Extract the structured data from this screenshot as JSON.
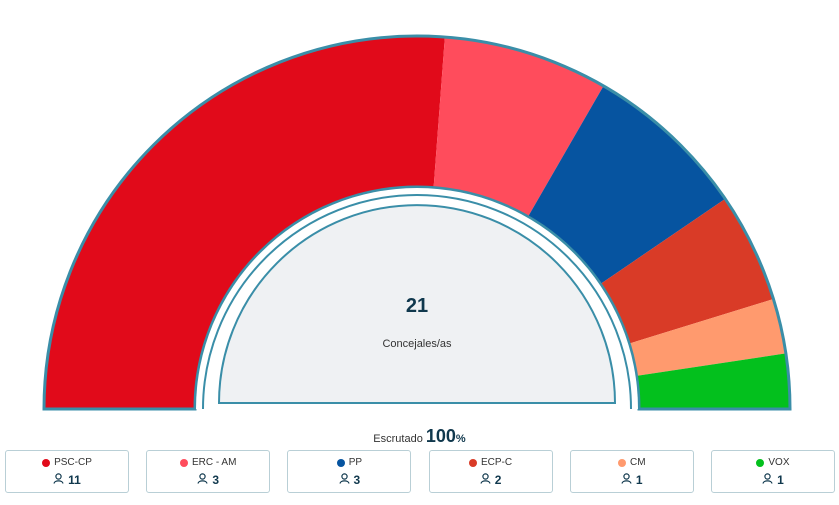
{
  "chart_data": {
    "type": "pie",
    "total": "21",
    "total_label": "Concejales/as",
    "categories": [
      "PSC-CP",
      "ERC - AM",
      "PP",
      "ECP-C",
      "CM",
      "VOX"
    ],
    "values": [
      11,
      3,
      3,
      2,
      1,
      1
    ],
    "colors": [
      "#e10a1a",
      "#ff4c5c",
      "#0654a0",
      "#d93b27",
      "#ff9a6e",
      "#03c01d"
    ]
  },
  "scrutiny": {
    "label": "Escrutado",
    "value": "100",
    "unit": "%"
  },
  "legend": [
    {
      "name": "PSC-CP",
      "seats": "11",
      "color": "#e10a1a"
    },
    {
      "name": "ERC - AM",
      "seats": "3",
      "color": "#ff4c5c"
    },
    {
      "name": "PP",
      "seats": "3",
      "color": "#0654a0"
    },
    {
      "name": "ECP-C",
      "seats": "2",
      "color": "#d93b27"
    },
    {
      "name": "CM",
      "seats": "1",
      "color": "#ff9a6e"
    },
    {
      "name": "VOX",
      "seats": "1",
      "color": "#03c01d"
    }
  ],
  "icons": {
    "seats": "person-icon"
  }
}
